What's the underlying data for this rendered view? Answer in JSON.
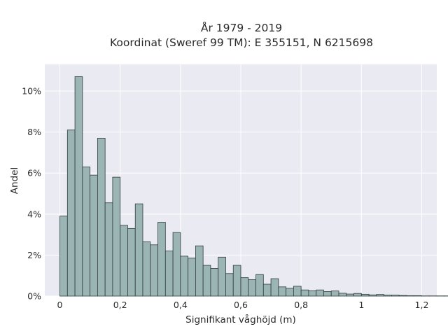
{
  "chart_data": {
    "type": "bar",
    "title_line1": "År 1979 - 2019",
    "title_line2": "Koordinat (Sweref 99 TM): E 355151, N 6215698",
    "xlabel": "Signifikant våghöjd (m)",
    "ylabel": "Andel",
    "xlim": [
      -0.05,
      1.25
    ],
    "ylim": [
      0,
      11.3
    ],
    "bin_width": 0.025,
    "bin_start": 0.0,
    "x_ticks": [
      {
        "value": 0,
        "label": "0"
      },
      {
        "value": 0.2,
        "label": "0,2"
      },
      {
        "value": 0.4,
        "label": "0,4"
      },
      {
        "value": 0.6,
        "label": "0,6"
      },
      {
        "value": 0.8,
        "label": "0,8"
      },
      {
        "value": 1.0,
        "label": "1"
      },
      {
        "value": 1.2,
        "label": "1,2"
      }
    ],
    "y_ticks": [
      {
        "value": 0,
        "label": "0%"
      },
      {
        "value": 2,
        "label": "2%"
      },
      {
        "value": 4,
        "label": "4%"
      },
      {
        "value": 6,
        "label": "6%"
      },
      {
        "value": 8,
        "label": "8%"
      },
      {
        "value": 10,
        "label": "10%"
      }
    ],
    "values": [
      3.9,
      8.1,
      10.7,
      6.3,
      5.9,
      7.7,
      4.55,
      5.8,
      3.45,
      3.3,
      4.5,
      2.65,
      2.5,
      3.6,
      2.2,
      3.1,
      1.95,
      1.85,
      2.45,
      1.5,
      1.35,
      1.9,
      1.1,
      1.5,
      0.9,
      0.8,
      1.05,
      0.58,
      0.85,
      0.45,
      0.38,
      0.48,
      0.3,
      0.26,
      0.3,
      0.22,
      0.25,
      0.14,
      0.1,
      0.13,
      0.09,
      0.06,
      0.08,
      0.05,
      0.05,
      0.03,
      0.02,
      0.02,
      0.01,
      0.01,
      0.01,
      0.01
    ],
    "grid": true,
    "legend": "none",
    "colors": {
      "bar_fill": "#9bb5b4",
      "bar_edge": "#2f3b3b",
      "plot_background": "#eaeaf2",
      "grid": "#ffffff"
    }
  }
}
